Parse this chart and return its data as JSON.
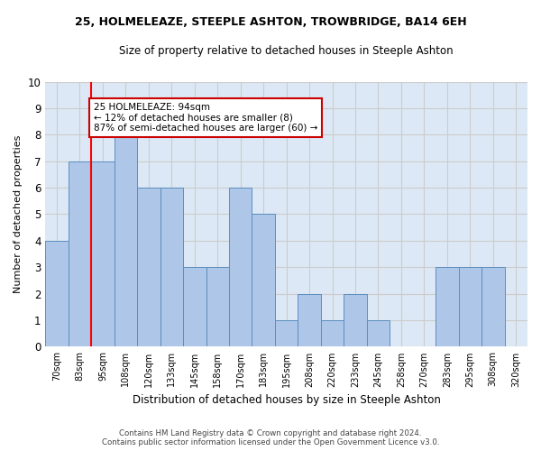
{
  "title": "25, HOLMELEAZE, STEEPLE ASHTON, TROWBRIDGE, BA14 6EH",
  "subtitle": "Size of property relative to detached houses in Steeple Ashton",
  "xlabel": "Distribution of detached houses by size in Steeple Ashton",
  "ylabel": "Number of detached properties",
  "bin_labels": [
    "70sqm",
    "83sqm",
    "95sqm",
    "108sqm",
    "120sqm",
    "133sqm",
    "145sqm",
    "158sqm",
    "170sqm",
    "183sqm",
    "195sqm",
    "208sqm",
    "220sqm",
    "233sqm",
    "245sqm",
    "258sqm",
    "270sqm",
    "283sqm",
    "295sqm",
    "308sqm",
    "320sqm"
  ],
  "bar_heights": [
    4,
    7,
    7,
    8,
    6,
    6,
    3,
    3,
    6,
    5,
    1,
    2,
    1,
    2,
    1,
    0,
    0,
    3,
    3,
    3,
    0
  ],
  "bar_color": "#aec6e8",
  "bar_edge_color": "#5a8fc0",
  "annotation_text": "25 HOLMELEAZE: 94sqm\n← 12% of detached houses are smaller (8)\n87% of semi-detached houses are larger (60) →",
  "annotation_box_color": "#ffffff",
  "annotation_border_color": "#cc0000",
  "ylim": [
    0,
    10
  ],
  "yticks": [
    0,
    1,
    2,
    3,
    4,
    5,
    6,
    7,
    8,
    9,
    10
  ],
  "grid_color": "#cccccc",
  "background_color": "#dce8f5",
  "figure_background": "#ffffff",
  "footer_line1": "Contains HM Land Registry data © Crown copyright and database right 2024.",
  "footer_line2": "Contains public sector information licensed under the Open Government Licence v3.0."
}
